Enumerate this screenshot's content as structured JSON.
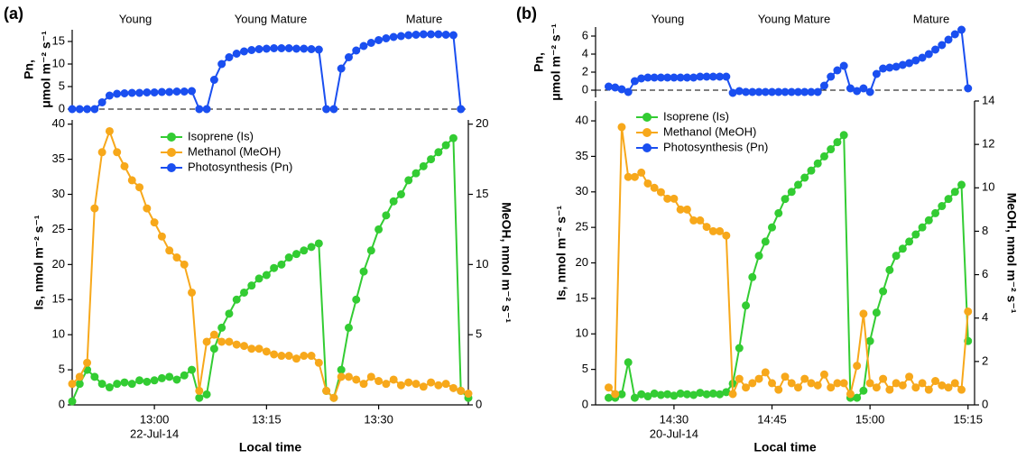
{
  "chart_data": [
    {
      "type": "line",
      "panel": "(a)",
      "phases": [
        "Young",
        "Young  Mature",
        "Mature"
      ],
      "y_label": "Pn,",
      "y_label_unit": "μmol m⁻² s⁻¹",
      "x": [
        "12:49",
        "12:50",
        "12:51",
        "12:52",
        "12:53",
        "12:54",
        "12:55",
        "12:56",
        "12:57",
        "12:58",
        "12:59",
        "13:00",
        "13:01",
        "13:02",
        "13:03",
        "13:04",
        "13:05",
        "13:06",
        "13:07",
        "13:08",
        "13:09",
        "13:10",
        "13:11",
        "13:12",
        "13:13",
        "13:14",
        "13:15",
        "13:16",
        "13:17",
        "13:18",
        "13:19",
        "13:20",
        "13:21",
        "13:22",
        "13:23",
        "13:24",
        "13:25",
        "13:26",
        "13:27",
        "13:28",
        "13:29",
        "13:30",
        "13:31",
        "13:32",
        "13:33",
        "13:34",
        "13:35",
        "13:36",
        "13:37",
        "13:38",
        "13:39",
        "13:40",
        "13:41"
      ],
      "xlim": [
        "12:49",
        "13:42"
      ],
      "ylim": [
        0,
        17.6
      ],
      "yticks": [
        0,
        5,
        10,
        15
      ],
      "series": [
        {
          "name": "Photosynthesis (Pn)",
          "color": "#1a4ff0",
          "values": [
            0,
            0,
            0,
            0,
            1.5,
            3,
            3.4,
            3.5,
            3.6,
            3.6,
            3.7,
            3.7,
            3.8,
            3.8,
            3.9,
            3.9,
            4.0,
            0,
            0,
            6.5,
            10,
            11.5,
            12.3,
            12.8,
            13.1,
            13.3,
            13.4,
            13.5,
            13.5,
            13.5,
            13.4,
            13.4,
            13.3,
            13.2,
            0,
            0,
            9,
            11.5,
            13,
            14,
            14.7,
            15.3,
            15.7,
            16,
            16.2,
            16.4,
            16.5,
            16.6,
            16.6,
            16.6,
            16.5,
            16.4,
            0
          ]
        }
      ]
    },
    {
      "type": "line",
      "x_label": "Local time",
      "date": "22-Jul-14",
      "y_label": "Is, nmol m⁻² s⁻¹",
      "y2_label": "MeOH, nmol m⁻² s⁻¹",
      "x": [
        "12:49",
        "12:50",
        "12:51",
        "12:52",
        "12:53",
        "12:54",
        "12:55",
        "12:56",
        "12:57",
        "12:58",
        "12:59",
        "13:00",
        "13:01",
        "13:02",
        "13:03",
        "13:04",
        "13:05",
        "13:06",
        "13:07",
        "13:08",
        "13:09",
        "13:10",
        "13:11",
        "13:12",
        "13:13",
        "13:14",
        "13:15",
        "13:16",
        "13:17",
        "13:18",
        "13:19",
        "13:20",
        "13:21",
        "13:22",
        "13:23",
        "13:24",
        "13:25",
        "13:26",
        "13:27",
        "13:28",
        "13:29",
        "13:30",
        "13:31",
        "13:32",
        "13:33",
        "13:34",
        "13:35",
        "13:36",
        "13:37",
        "13:38",
        "13:39",
        "13:40",
        "13:41",
        "13:42"
      ],
      "xlim": [
        "12:49",
        "13:42"
      ],
      "xticks": [
        "13:00",
        "13:15",
        "13:30"
      ],
      "ylim": [
        0,
        40.6
      ],
      "yticks": [
        0,
        5,
        10,
        15,
        20,
        25,
        30,
        35,
        40
      ],
      "y2lim": [
        0,
        20.3
      ],
      "y2ticks": [
        0,
        5,
        10,
        15,
        20
      ],
      "series": [
        {
          "name": "Isoprene (Is)",
          "color": "#33cc33",
          "values": [
            0.5,
            3,
            5,
            4,
            3,
            2.5,
            3,
            3.2,
            3,
            3.5,
            3.3,
            3.5,
            3.8,
            4,
            3.6,
            4.2,
            5,
            1,
            1.5,
            8,
            11,
            13,
            15,
            16,
            17,
            18,
            18.5,
            19.5,
            20,
            21,
            21.5,
            22,
            22.5,
            23,
            2,
            1,
            5,
            11,
            15,
            19,
            22,
            25,
            27,
            29,
            30,
            32,
            33,
            34,
            35,
            36,
            37,
            38,
            2,
            1
          ]
        },
        {
          "name": "Methanol (MeOH)",
          "color": "#f7a81b",
          "axis": "y2",
          "values": [
            1.5,
            2,
            3,
            14,
            18,
            19.5,
            18,
            17,
            16,
            15.5,
            14,
            13,
            12,
            11,
            10.5,
            10,
            8,
            1,
            4.5,
            5,
            4.5,
            4.5,
            4.3,
            4.2,
            4,
            4,
            3.8,
            3.6,
            3.5,
            3.5,
            3.3,
            3.5,
            3.5,
            3,
            1,
            0.5,
            2,
            2,
            1.8,
            1.5,
            2,
            1.7,
            1.5,
            1.8,
            1.4,
            1.6,
            1.5,
            1.3,
            1.6,
            1.4,
            1.5,
            1.2,
            1,
            0.8
          ]
        }
      ]
    },
    {
      "type": "line",
      "panel": "(b)",
      "phases": [
        "Young",
        "Young Mature",
        "Mature"
      ],
      "y_label": "Pn,",
      "y_label_unit": "μmol m⁻² s⁻¹",
      "x": [
        "14:20",
        "14:21",
        "14:22",
        "14:23",
        "14:24",
        "14:25",
        "14:26",
        "14:27",
        "14:28",
        "14:29",
        "14:30",
        "14:31",
        "14:32",
        "14:33",
        "14:34",
        "14:35",
        "14:36",
        "14:37",
        "14:38",
        "14:39",
        "14:40",
        "14:41",
        "14:42",
        "14:43",
        "14:44",
        "14:45",
        "14:46",
        "14:47",
        "14:48",
        "14:49",
        "14:50",
        "14:51",
        "14:52",
        "14:53",
        "14:54",
        "14:55",
        "14:56",
        "14:57",
        "14:58",
        "14:59",
        "15:00",
        "15:01",
        "15:02",
        "15:03",
        "15:04",
        "15:05",
        "15:06",
        "15:07",
        "15:08",
        "15:09",
        "15:10",
        "15:11",
        "15:12",
        "15:13",
        "15:14",
        "15:15"
      ],
      "xlim": [
        "14:18",
        "15:16"
      ],
      "ylim": [
        -0.8,
        7
      ],
      "yticks": [
        0,
        2,
        4,
        6
      ],
      "series": [
        {
          "name": "Photosynthesis (Pn)",
          "color": "#1a4ff0",
          "values": [
            0.4,
            0.3,
            0.1,
            -0.2,
            1.0,
            1.3,
            1.4,
            1.4,
            1.4,
            1.4,
            1.4,
            1.4,
            1.4,
            1.4,
            1.5,
            1.5,
            1.5,
            1.5,
            1.5,
            -0.3,
            -0.1,
            -0.2,
            -0.2,
            -0.2,
            -0.2,
            -0.2,
            -0.2,
            -0.2,
            -0.2,
            -0.2,
            -0.2,
            -0.2,
            -0.2,
            0.5,
            1.5,
            2.2,
            2.7,
            0.2,
            -0.1,
            0.2,
            -0.2,
            1.8,
            2.4,
            2.5,
            2.6,
            2.8,
            3.0,
            3.3,
            3.6,
            4.0,
            4.5,
            5.0,
            5.6,
            6.2,
            6.7,
            0.2
          ]
        }
      ]
    },
    {
      "type": "line",
      "x_label": "Local time",
      "date": "20-Jul-14",
      "y_label": "Is, nmol m⁻² s⁻¹",
      "y2_label": "MeOH, nmol m⁻² s⁻¹",
      "x": [
        "14:20",
        "14:21",
        "14:22",
        "14:23",
        "14:24",
        "14:25",
        "14:26",
        "14:27",
        "14:28",
        "14:29",
        "14:30",
        "14:31",
        "14:32",
        "14:33",
        "14:34",
        "14:35",
        "14:36",
        "14:37",
        "14:38",
        "14:39",
        "14:40",
        "14:41",
        "14:42",
        "14:43",
        "14:44",
        "14:45",
        "14:46",
        "14:47",
        "14:48",
        "14:49",
        "14:50",
        "14:51",
        "14:52",
        "14:53",
        "14:54",
        "14:55",
        "14:56",
        "14:57",
        "14:58",
        "14:59",
        "15:00",
        "15:01",
        "15:02",
        "15:03",
        "15:04",
        "15:05",
        "15:06",
        "15:07",
        "15:08",
        "15:09",
        "15:10",
        "15:11",
        "15:12",
        "15:13",
        "15:14",
        "15:15"
      ],
      "xlim": [
        "14:18",
        "15:16"
      ],
      "xticks": [
        "14:30",
        "14:45",
        "15:00",
        "15:15"
      ],
      "ylim": [
        0,
        42.8
      ],
      "yticks": [
        0,
        5,
        10,
        15,
        20,
        25,
        30,
        35,
        40
      ],
      "y2lim": [
        0,
        14
      ],
      "y2ticks": [
        0,
        2,
        4,
        6,
        8,
        10,
        12,
        14
      ],
      "series": [
        {
          "name": "Isoprene (Is)",
          "color": "#33cc33",
          "values": [
            1,
            1,
            1.5,
            6,
            1,
            1.5,
            1.2,
            1.6,
            1.4,
            1.5,
            1.3,
            1.6,
            1.5,
            1.4,
            1.7,
            1.5,
            1.6,
            1.5,
            1.8,
            3,
            8,
            14,
            18,
            21,
            23,
            25,
            27,
            29,
            30,
            31,
            32,
            33,
            34,
            35,
            36,
            37,
            38,
            1,
            1,
            2,
            9,
            13,
            16,
            19,
            21,
            22,
            23,
            24,
            25,
            26,
            27,
            28,
            29,
            30,
            31,
            9
          ]
        },
        {
          "name": "Methanol (MeOH)",
          "color": "#f7a81b",
          "axis": "y2",
          "values": [
            0.8,
            0.5,
            12.8,
            10.5,
            10.5,
            10.7,
            10.2,
            10,
            9.8,
            9.5,
            9.5,
            9,
            9,
            8.5,
            8.5,
            8.2,
            8,
            8,
            7.8,
            0.5,
            1.2,
            0.8,
            1,
            1.2,
            1.5,
            1,
            0.7,
            1.3,
            1,
            0.8,
            1.2,
            1,
            0.9,
            1.4,
            0.8,
            1,
            1,
            0.5,
            1.8,
            4.2,
            1,
            0.8,
            1.2,
            0.7,
            1,
            0.9,
            1.3,
            0.8,
            1,
            0.7,
            1.1,
            0.9,
            0.8,
            1,
            0.7,
            4.3
          ]
        }
      ]
    }
  ]
}
